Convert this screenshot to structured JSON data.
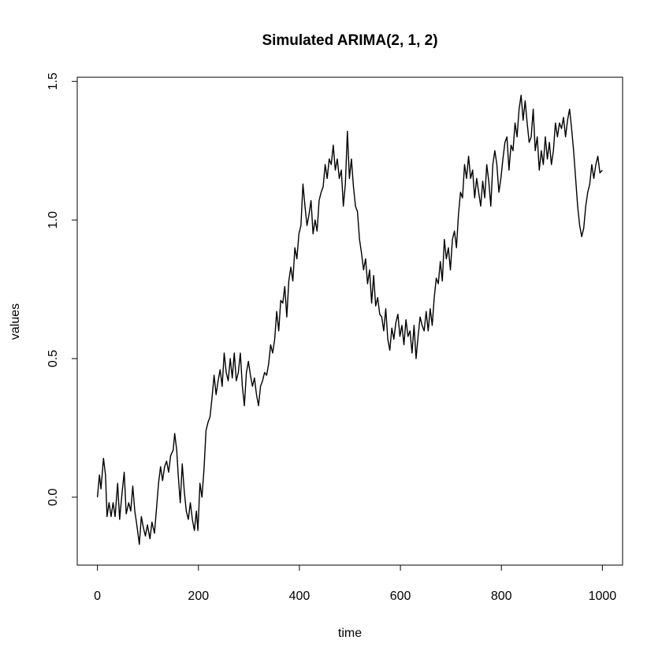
{
  "chart_data": {
    "type": "line",
    "title": "Simulated ARIMA(2, 1, 2)",
    "x_label": "time",
    "y_label": "values",
    "color": "#000000",
    "grid": false,
    "xlim": [
      -40,
      1040
    ],
    "ylim": [
      -0.245,
      1.515
    ],
    "xticks": [
      0,
      200,
      400,
      600,
      800,
      1000
    ],
    "yticks": [
      {
        "value": 0,
        "label": "0.0"
      },
      0.5,
      {
        "value": 1,
        "label": "1.0"
      },
      1.5
    ],
    "x": [
      0,
      4,
      7,
      12,
      16,
      19,
      23,
      27,
      31,
      35,
      40,
      44,
      49,
      53,
      57,
      62,
      66,
      70,
      74,
      78,
      83,
      87,
      91,
      95,
      99,
      104,
      108,
      113,
      117,
      121,
      125,
      129,
      133,
      137,
      141,
      145,
      150,
      153,
      157,
      160,
      164,
      168,
      172,
      176,
      180,
      184,
      188,
      192,
      196,
      199,
      203,
      207,
      211,
      215,
      219,
      223,
      227,
      231,
      235,
      239,
      243,
      247,
      251,
      255,
      259,
      263,
      267,
      271,
      275,
      279,
      283,
      287,
      291,
      295,
      299,
      303,
      307,
      311,
      315,
      319,
      323,
      327,
      331,
      335,
      339,
      343,
      347,
      351,
      355,
      359,
      363,
      367,
      371,
      375,
      379,
      383,
      387,
      391,
      395,
      399,
      403,
      407,
      411,
      415,
      419,
      423,
      427,
      431,
      435,
      439,
      443,
      447,
      451,
      455,
      459,
      463,
      467,
      471,
      475,
      479,
      483,
      487,
      491,
      495,
      499,
      503,
      507,
      511,
      515,
      519,
      523,
      527,
      531,
      535,
      539,
      543,
      547,
      551,
      555,
      559,
      563,
      567,
      571,
      575,
      579,
      583,
      587,
      591,
      595,
      599,
      603,
      607,
      611,
      615,
      619,
      623,
      627,
      631,
      635,
      639,
      643,
      647,
      651,
      655,
      659,
      663,
      667,
      671,
      675,
      679,
      683,
      687,
      691,
      695,
      699,
      703,
      707,
      711,
      715,
      719,
      723,
      727,
      731,
      735,
      739,
      743,
      747,
      751,
      755,
      759,
      763,
      767,
      771,
      775,
      779,
      783,
      787,
      791,
      795,
      799,
      803,
      807,
      811,
      815,
      819,
      823,
      827,
      831,
      835,
      839,
      843,
      847,
      851,
      855,
      859,
      863,
      867,
      871,
      875,
      879,
      883,
      887,
      891,
      895,
      899,
      903,
      907,
      911,
      915,
      919,
      923,
      927,
      931,
      935,
      939,
      943,
      947,
      951,
      955,
      959,
      963,
      967,
      971,
      975,
      979,
      983,
      987,
      991,
      995,
      1000
    ],
    "values": [
      0.0,
      0.08,
      0.03,
      0.14,
      0.08,
      -0.07,
      -0.02,
      -0.07,
      -0.02,
      -0.07,
      0.05,
      -0.08,
      0.02,
      0.09,
      -0.06,
      -0.02,
      -0.05,
      0.04,
      -0.05,
      -0.1,
      -0.17,
      -0.07,
      -0.11,
      -0.14,
      -0.1,
      -0.15,
      -0.09,
      -0.13,
      -0.04,
      0.05,
      0.11,
      0.06,
      0.11,
      0.13,
      0.09,
      0.15,
      0.17,
      0.23,
      0.17,
      0.08,
      -0.02,
      0.12,
      0.02,
      -0.05,
      -0.08,
      -0.02,
      -0.08,
      -0.12,
      -0.05,
      -0.12,
      0.05,
      0.0,
      0.1,
      0.24,
      0.27,
      0.29,
      0.36,
      0.44,
      0.37,
      0.42,
      0.46,
      0.4,
      0.52,
      0.45,
      0.42,
      0.5,
      0.43,
      0.52,
      0.42,
      0.45,
      0.52,
      0.4,
      0.33,
      0.45,
      0.49,
      0.44,
      0.4,
      0.43,
      0.37,
      0.33,
      0.4,
      0.42,
      0.45,
      0.44,
      0.48,
      0.55,
      0.52,
      0.57,
      0.67,
      0.6,
      0.71,
      0.7,
      0.76,
      0.65,
      0.78,
      0.83,
      0.78,
      0.9,
      0.86,
      0.95,
      0.98,
      1.13,
      1.05,
      0.98,
      1.02,
      1.07,
      0.95,
      1.0,
      0.96,
      1.07,
      1.1,
      1.12,
      1.2,
      1.15,
      1.22,
      1.2,
      1.27,
      1.18,
      1.22,
      1.15,
      1.18,
      1.05,
      1.13,
      1.32,
      1.15,
      1.22,
      1.12,
      1.05,
      1.03,
      0.93,
      0.88,
      0.82,
      0.86,
      0.77,
      0.82,
      0.7,
      0.8,
      0.69,
      0.72,
      0.66,
      0.65,
      0.6,
      0.68,
      0.57,
      0.53,
      0.61,
      0.57,
      0.63,
      0.66,
      0.58,
      0.62,
      0.55,
      0.64,
      0.58,
      0.6,
      0.52,
      0.62,
      0.5,
      0.58,
      0.65,
      0.62,
      0.6,
      0.67,
      0.6,
      0.68,
      0.62,
      0.72,
      0.79,
      0.77,
      0.85,
      0.78,
      0.93,
      0.86,
      0.9,
      0.82,
      0.93,
      0.96,
      0.9,
      1.02,
      1.1,
      1.08,
      1.2,
      1.15,
      1.23,
      1.15,
      1.18,
      1.08,
      1.15,
      1.1,
      1.05,
      1.14,
      1.08,
      1.2,
      1.14,
      1.05,
      1.2,
      1.25,
      1.2,
      1.1,
      1.15,
      1.22,
      1.28,
      1.3,
      1.18,
      1.27,
      1.25,
      1.35,
      1.3,
      1.4,
      1.45,
      1.36,
      1.43,
      1.35,
      1.28,
      1.3,
      1.4,
      1.25,
      1.3,
      1.18,
      1.25,
      1.2,
      1.3,
      1.22,
      1.28,
      1.2,
      1.25,
      1.35,
      1.3,
      1.35,
      1.33,
      1.37,
      1.3,
      1.36,
      1.4,
      1.33,
      1.25,
      1.15,
      1.05,
      0.98,
      0.94,
      0.97,
      1.05,
      1.1,
      1.13,
      1.2,
      1.15,
      1.2,
      1.23,
      1.17,
      1.18
    ]
  }
}
